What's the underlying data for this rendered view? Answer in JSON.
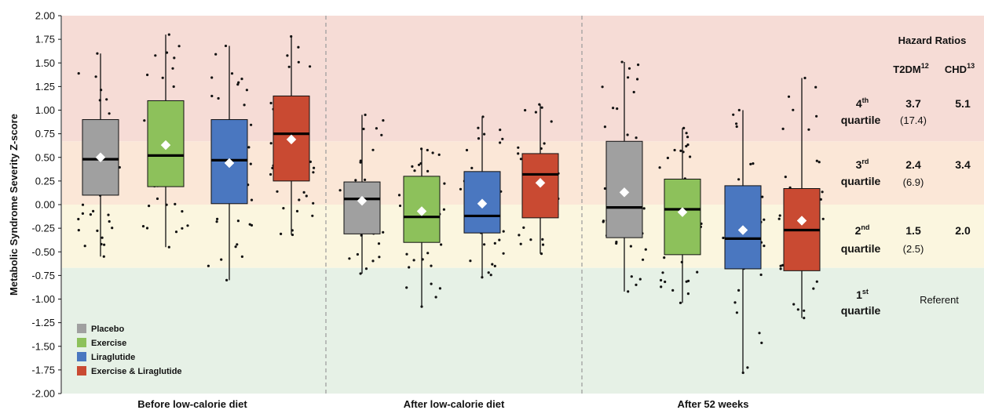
{
  "chart_data": {
    "type": "box",
    "ylabel": "Metabolic Syndrome Severity Z-score",
    "ylim": [
      -2.0,
      2.0
    ],
    "yticks": [
      "2.00",
      "1.75",
      "1.50",
      "1.25",
      "1.00",
      "0.75",
      "0.50",
      "0.25",
      "0.00",
      "-0.25",
      "-0.50",
      "-0.75",
      "-1.00",
      "-1.25",
      "-1.50",
      "-1.75",
      "-2.00"
    ],
    "zones": [
      {
        "name": "4th quartile",
        "from": 0.67,
        "to": 2.0,
        "color": "#f6dcd6"
      },
      {
        "name": "3rd quartile",
        "from": 0.0,
        "to": 0.67,
        "color": "#fbe7d7"
      },
      {
        "name": "2nd quartile",
        "from": -0.67,
        "to": 0.0,
        "color": "#fbf6df"
      },
      {
        "name": "1st quartile",
        "from": -2.0,
        "to": -0.67,
        "color": "#e6f1e6"
      }
    ],
    "groups": [
      "Before low-calorie diet",
      "After low-calorie diet",
      "After 52 weeks"
    ],
    "series": [
      {
        "name": "Placebo",
        "color": "#a0a0a0"
      },
      {
        "name": "Exercise",
        "color": "#8dc15b"
      },
      {
        "name": "Liraglutide",
        "color": "#4a77c0"
      },
      {
        "name": "Exercise & Liraglutide",
        "color": "#c94a32"
      }
    ],
    "boxes": [
      {
        "group": 0,
        "series": 0,
        "whisker_low": -0.55,
        "q1": 0.1,
        "median": 0.48,
        "q3": 0.9,
        "whisker_high": 1.6,
        "mean": 0.5
      },
      {
        "group": 0,
        "series": 1,
        "whisker_low": -0.45,
        "q1": 0.19,
        "median": 0.52,
        "q3": 1.1,
        "whisker_high": 1.8,
        "mean": 0.63
      },
      {
        "group": 0,
        "series": 2,
        "whisker_low": -0.8,
        "q1": 0.01,
        "median": 0.47,
        "q3": 0.9,
        "whisker_high": 1.68,
        "mean": 0.44
      },
      {
        "group": 0,
        "series": 3,
        "whisker_low": -0.32,
        "q1": 0.25,
        "median": 0.75,
        "q3": 1.15,
        "whisker_high": 1.78,
        "mean": 0.69
      },
      {
        "group": 1,
        "series": 0,
        "whisker_low": -0.73,
        "q1": -0.31,
        "median": 0.06,
        "q3": 0.24,
        "whisker_high": 0.95,
        "mean": 0.04
      },
      {
        "group": 1,
        "series": 1,
        "whisker_low": -1.08,
        "q1": -0.4,
        "median": -0.13,
        "q3": 0.3,
        "whisker_high": 0.59,
        "mean": -0.07
      },
      {
        "group": 1,
        "series": 2,
        "whisker_low": -0.77,
        "q1": -0.3,
        "median": -0.12,
        "q3": 0.35,
        "whisker_high": 0.93,
        "mean": 0.01
      },
      {
        "group": 1,
        "series": 3,
        "whisker_low": -0.52,
        "q1": -0.14,
        "median": 0.32,
        "q3": 0.54,
        "whisker_high": 1.06,
        "mean": 0.23
      },
      {
        "group": 2,
        "series": 0,
        "whisker_low": -0.92,
        "q1": -0.35,
        "median": -0.03,
        "q3": 0.67,
        "whisker_high": 1.51,
        "mean": 0.13
      },
      {
        "group": 2,
        "series": 1,
        "whisker_low": -1.04,
        "q1": -0.53,
        "median": -0.05,
        "q3": 0.27,
        "whisker_high": 0.81,
        "mean": -0.08
      },
      {
        "group": 2,
        "series": 2,
        "whisker_low": -1.78,
        "q1": -0.68,
        "median": -0.36,
        "q3": 0.2,
        "whisker_high": 1.0,
        "mean": -0.27
      },
      {
        "group": 2,
        "series": 3,
        "whisker_low": -1.2,
        "q1": -0.7,
        "median": -0.27,
        "q3": 0.17,
        "whisker_high": 1.34,
        "mean": -0.17
      }
    ]
  },
  "legend": {
    "items": [
      {
        "label": "Placebo",
        "color": "#a0a0a0"
      },
      {
        "label": "Exercise",
        "color": "#8dc15b"
      },
      {
        "label": "Liraglutide",
        "color": "#4a77c0"
      },
      {
        "label": "Exercise & Liraglutide",
        "color": "#c94a32"
      }
    ]
  },
  "hazard": {
    "title": "Hazard Ratios",
    "col1": "T2DM",
    "col1_sup": "12",
    "col2": "CHD",
    "col2_sup": "13",
    "rows": [
      {
        "q_num": "4",
        "q_sup": "th",
        "q_word": "quartile",
        "t2dm": "3.7",
        "t2dm_paren": "(17.4)",
        "chd": "5.1"
      },
      {
        "q_num": "3",
        "q_sup": "rd",
        "q_word": "quartile",
        "t2dm": "2.4",
        "t2dm_paren": "(6.9)",
        "chd": "3.4"
      },
      {
        "q_num": "2",
        "q_sup": "nd",
        "q_word": "quartile",
        "t2dm": "1.5",
        "t2dm_paren": "(2.5)",
        "chd": "2.0"
      },
      {
        "q_num": "1",
        "q_sup": "st",
        "q_word": "quartile",
        "referent": "Referent"
      }
    ]
  }
}
